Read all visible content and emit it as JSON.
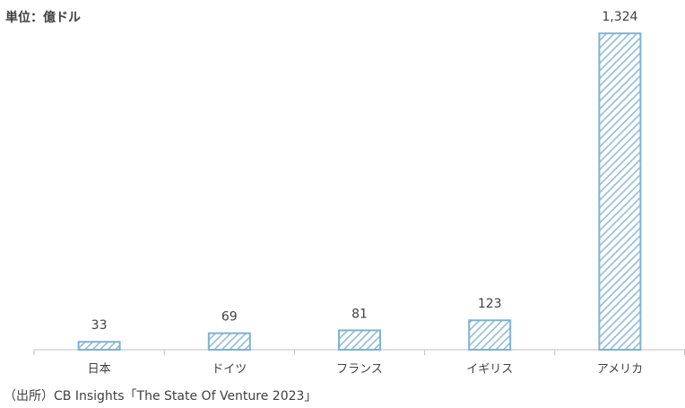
{
  "chart_data": {
    "type": "bar",
    "unit_note": "単位：億ドル",
    "categories": [
      "日本",
      "ドイツ",
      "フランス",
      "イギリス",
      "アメリカ"
    ],
    "values": [
      33,
      69,
      81,
      123,
      1324
    ],
    "value_labels": [
      "33",
      "69",
      "81",
      "123",
      "1,324"
    ],
    "color": "#8dbad6",
    "ylim": [
      0,
      1400
    ],
    "source": "（出所）CB Insights「The State Of Venture  2023」"
  }
}
